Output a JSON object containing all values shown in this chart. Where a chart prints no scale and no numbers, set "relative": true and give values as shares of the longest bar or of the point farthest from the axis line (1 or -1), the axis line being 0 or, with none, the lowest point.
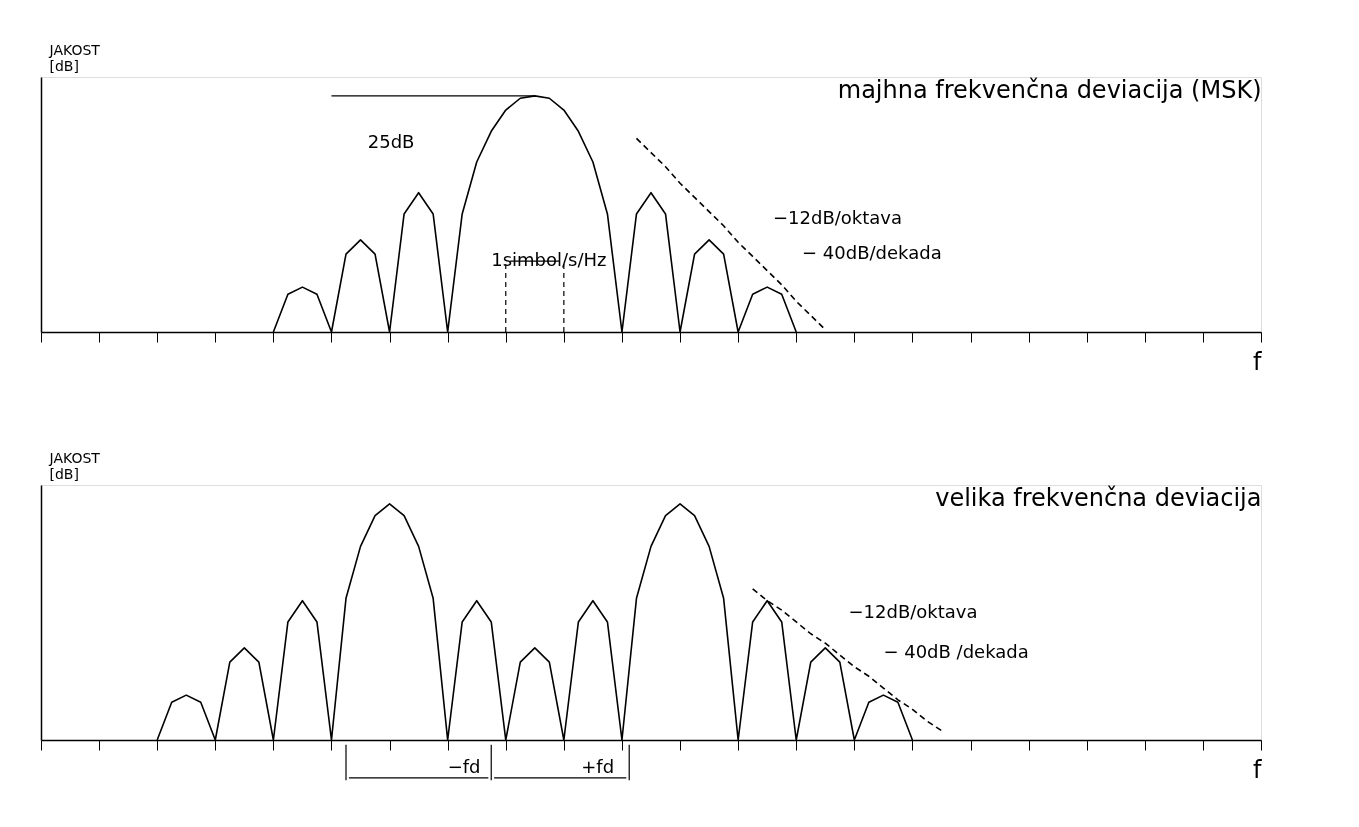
{
  "chart_data": [
    {
      "type": "line",
      "title": "majhna frekvenčna deviacija (MSK)",
      "xlabel": "f",
      "ylabel": "JAKOST\n[dB]",
      "relative": true,
      "tick_labels": false,
      "grid": false,
      "categories": [
        null,
        null,
        null,
        null,
        null,
        null,
        null,
        null,
        null,
        null,
        null,
        null,
        null,
        null,
        null,
        null,
        null,
        null,
        null,
        null,
        null,
        null,
        null,
        null,
        null,
        null,
        null,
        null,
        null,
        null,
        null,
        null,
        null,
        null,
        null,
        null,
        null,
        null,
        null,
        null,
        null,
        null,
        null,
        null,
        null,
        null,
        null,
        null,
        null,
        null,
        null,
        null,
        null,
        null,
        null,
        null,
        null,
        null,
        null,
        null,
        null,
        null,
        null,
        null,
        null,
        null,
        null,
        null,
        null,
        null,
        null,
        null,
        null,
        null,
        null,
        null,
        null,
        null,
        null,
        null,
        null,
        null,
        null,
        null,
        null
      ],
      "series": [
        {
          "color": "#000000",
          "line_style": "solid",
          "values": [
            null,
            null,
            null,
            null,
            null,
            null,
            null,
            null,
            null,
            null,
            null,
            null,
            null,
            null,
            null,
            null,
            0,
            0.16,
            0.19,
            0.16,
            0,
            0.33,
            0.39,
            0.33,
            0,
            0.5,
            0.59,
            0.5,
            0,
            0.5,
            0.72,
            0.85,
            0.94,
            0.99,
            1,
            0.99,
            0.94,
            0.85,
            0.72,
            0.5,
            0,
            0.5,
            0.59,
            0.5,
            0,
            0.33,
            0.39,
            0.33,
            0,
            0.16,
            0.19,
            0.16,
            0,
            null,
            null,
            null,
            null,
            null,
            null,
            null,
            null,
            null,
            null,
            null,
            null,
            null,
            null,
            null,
            null,
            null,
            null,
            null,
            null,
            null,
            null,
            null,
            null,
            null,
            null,
            null,
            null,
            null,
            null,
            null,
            null
          ]
        },
        {
          "color": "#000000",
          "line_style": "dashed",
          "values": [
            null,
            null,
            null,
            null,
            null,
            null,
            null,
            null,
            null,
            null,
            null,
            null,
            null,
            null,
            null,
            null,
            null,
            null,
            null,
            null,
            null,
            null,
            null,
            null,
            null,
            null,
            null,
            null,
            null,
            null,
            null,
            null,
            null,
            null,
            null,
            null,
            null,
            null,
            null,
            null,
            null,
            0.82,
            0.76,
            0.7,
            0.63,
            0.57,
            0.51,
            0.45,
            0.38,
            0.32,
            0.26,
            0.2,
            0.13,
            0.07,
            0.01,
            null,
            null,
            null,
            null,
            null,
            null,
            null,
            null,
            null,
            null,
            null,
            null,
            null,
            null,
            null,
            null,
            null,
            null,
            null,
            null,
            null,
            null,
            null,
            null,
            null,
            null,
            null,
            null,
            null,
            null
          ]
        }
      ],
      "annotations": [
        "25dB",
        "1simbol/s/Hz",
        "−12dB/oktava",
        "− 40dB/dekada"
      ]
    },
    {
      "type": "line",
      "title": "velika frekvenčna deviacija",
      "xlabel": "f",
      "ylabel": "JAKOST\n[dB]",
      "relative": true,
      "tick_labels": false,
      "grid": false,
      "categories": [
        null,
        null,
        null,
        null,
        null,
        null,
        null,
        null,
        null,
        null,
        null,
        null,
        null,
        null,
        null,
        null,
        null,
        null,
        null,
        null,
        null,
        null,
        null,
        null,
        null,
        null,
        null,
        null,
        null,
        null,
        null,
        null,
        null,
        null,
        null,
        null,
        null,
        null,
        null,
        null,
        null,
        null,
        null,
        null,
        null,
        null,
        null,
        null,
        null,
        null,
        null,
        null,
        null,
        null,
        null,
        null,
        null,
        null,
        null,
        null,
        null,
        null,
        null,
        null,
        null,
        null,
        null,
        null,
        null,
        null,
        null,
        null,
        null,
        null,
        null,
        null,
        null,
        null,
        null,
        null,
        null,
        null,
        null,
        null,
        null
      ],
      "series": [
        {
          "color": "#000000",
          "line_style": "solid",
          "values": [
            null,
            null,
            null,
            null,
            null,
            null,
            null,
            null,
            0,
            0.16,
            0.19,
            0.16,
            0,
            0.33,
            0.39,
            0.33,
            0,
            0.5,
            0.59,
            0.5,
            0,
            0.6,
            0.82,
            0.95,
            1,
            0.95,
            0.82,
            0.6,
            0,
            0.5,
            0.59,
            0.5,
            0,
            0.33,
            0.39,
            0.33,
            0,
            0.5,
            0.59,
            0.5,
            0,
            0.6,
            0.82,
            0.95,
            1,
            0.95,
            0.82,
            0.6,
            0,
            0.5,
            0.59,
            0.5,
            0,
            0.33,
            0.39,
            0.33,
            0,
            0.16,
            0.19,
            0.16,
            0,
            null,
            null,
            null,
            null,
            null,
            null,
            null,
            null,
            null,
            null,
            null,
            null,
            null,
            null,
            null,
            null,
            null,
            null,
            null,
            null,
            null,
            null,
            null,
            null
          ]
        },
        {
          "color": "#000000",
          "line_style": "dashed",
          "values": [
            null,
            null,
            null,
            null,
            null,
            null,
            null,
            null,
            null,
            null,
            null,
            null,
            null,
            null,
            null,
            null,
            null,
            null,
            null,
            null,
            null,
            null,
            null,
            null,
            null,
            null,
            null,
            null,
            null,
            null,
            null,
            null,
            null,
            null,
            null,
            null,
            null,
            null,
            null,
            null,
            null,
            null,
            null,
            null,
            null,
            null,
            null,
            null,
            null,
            0.64,
            0.59,
            0.55,
            0.5,
            0.45,
            0.41,
            0.36,
            0.31,
            0.27,
            0.22,
            0.17,
            0.13,
            0.08,
            0.04,
            null,
            null,
            null,
            null,
            null,
            null,
            null,
            null,
            null,
            null,
            null,
            null,
            null,
            null,
            null,
            null,
            null,
            null,
            null,
            null,
            null,
            null
          ]
        }
      ],
      "annotations": [
        "−12dB/oktava",
        "− 40dB /dekada",
        "−fd",
        "+fd"
      ]
    }
  ]
}
